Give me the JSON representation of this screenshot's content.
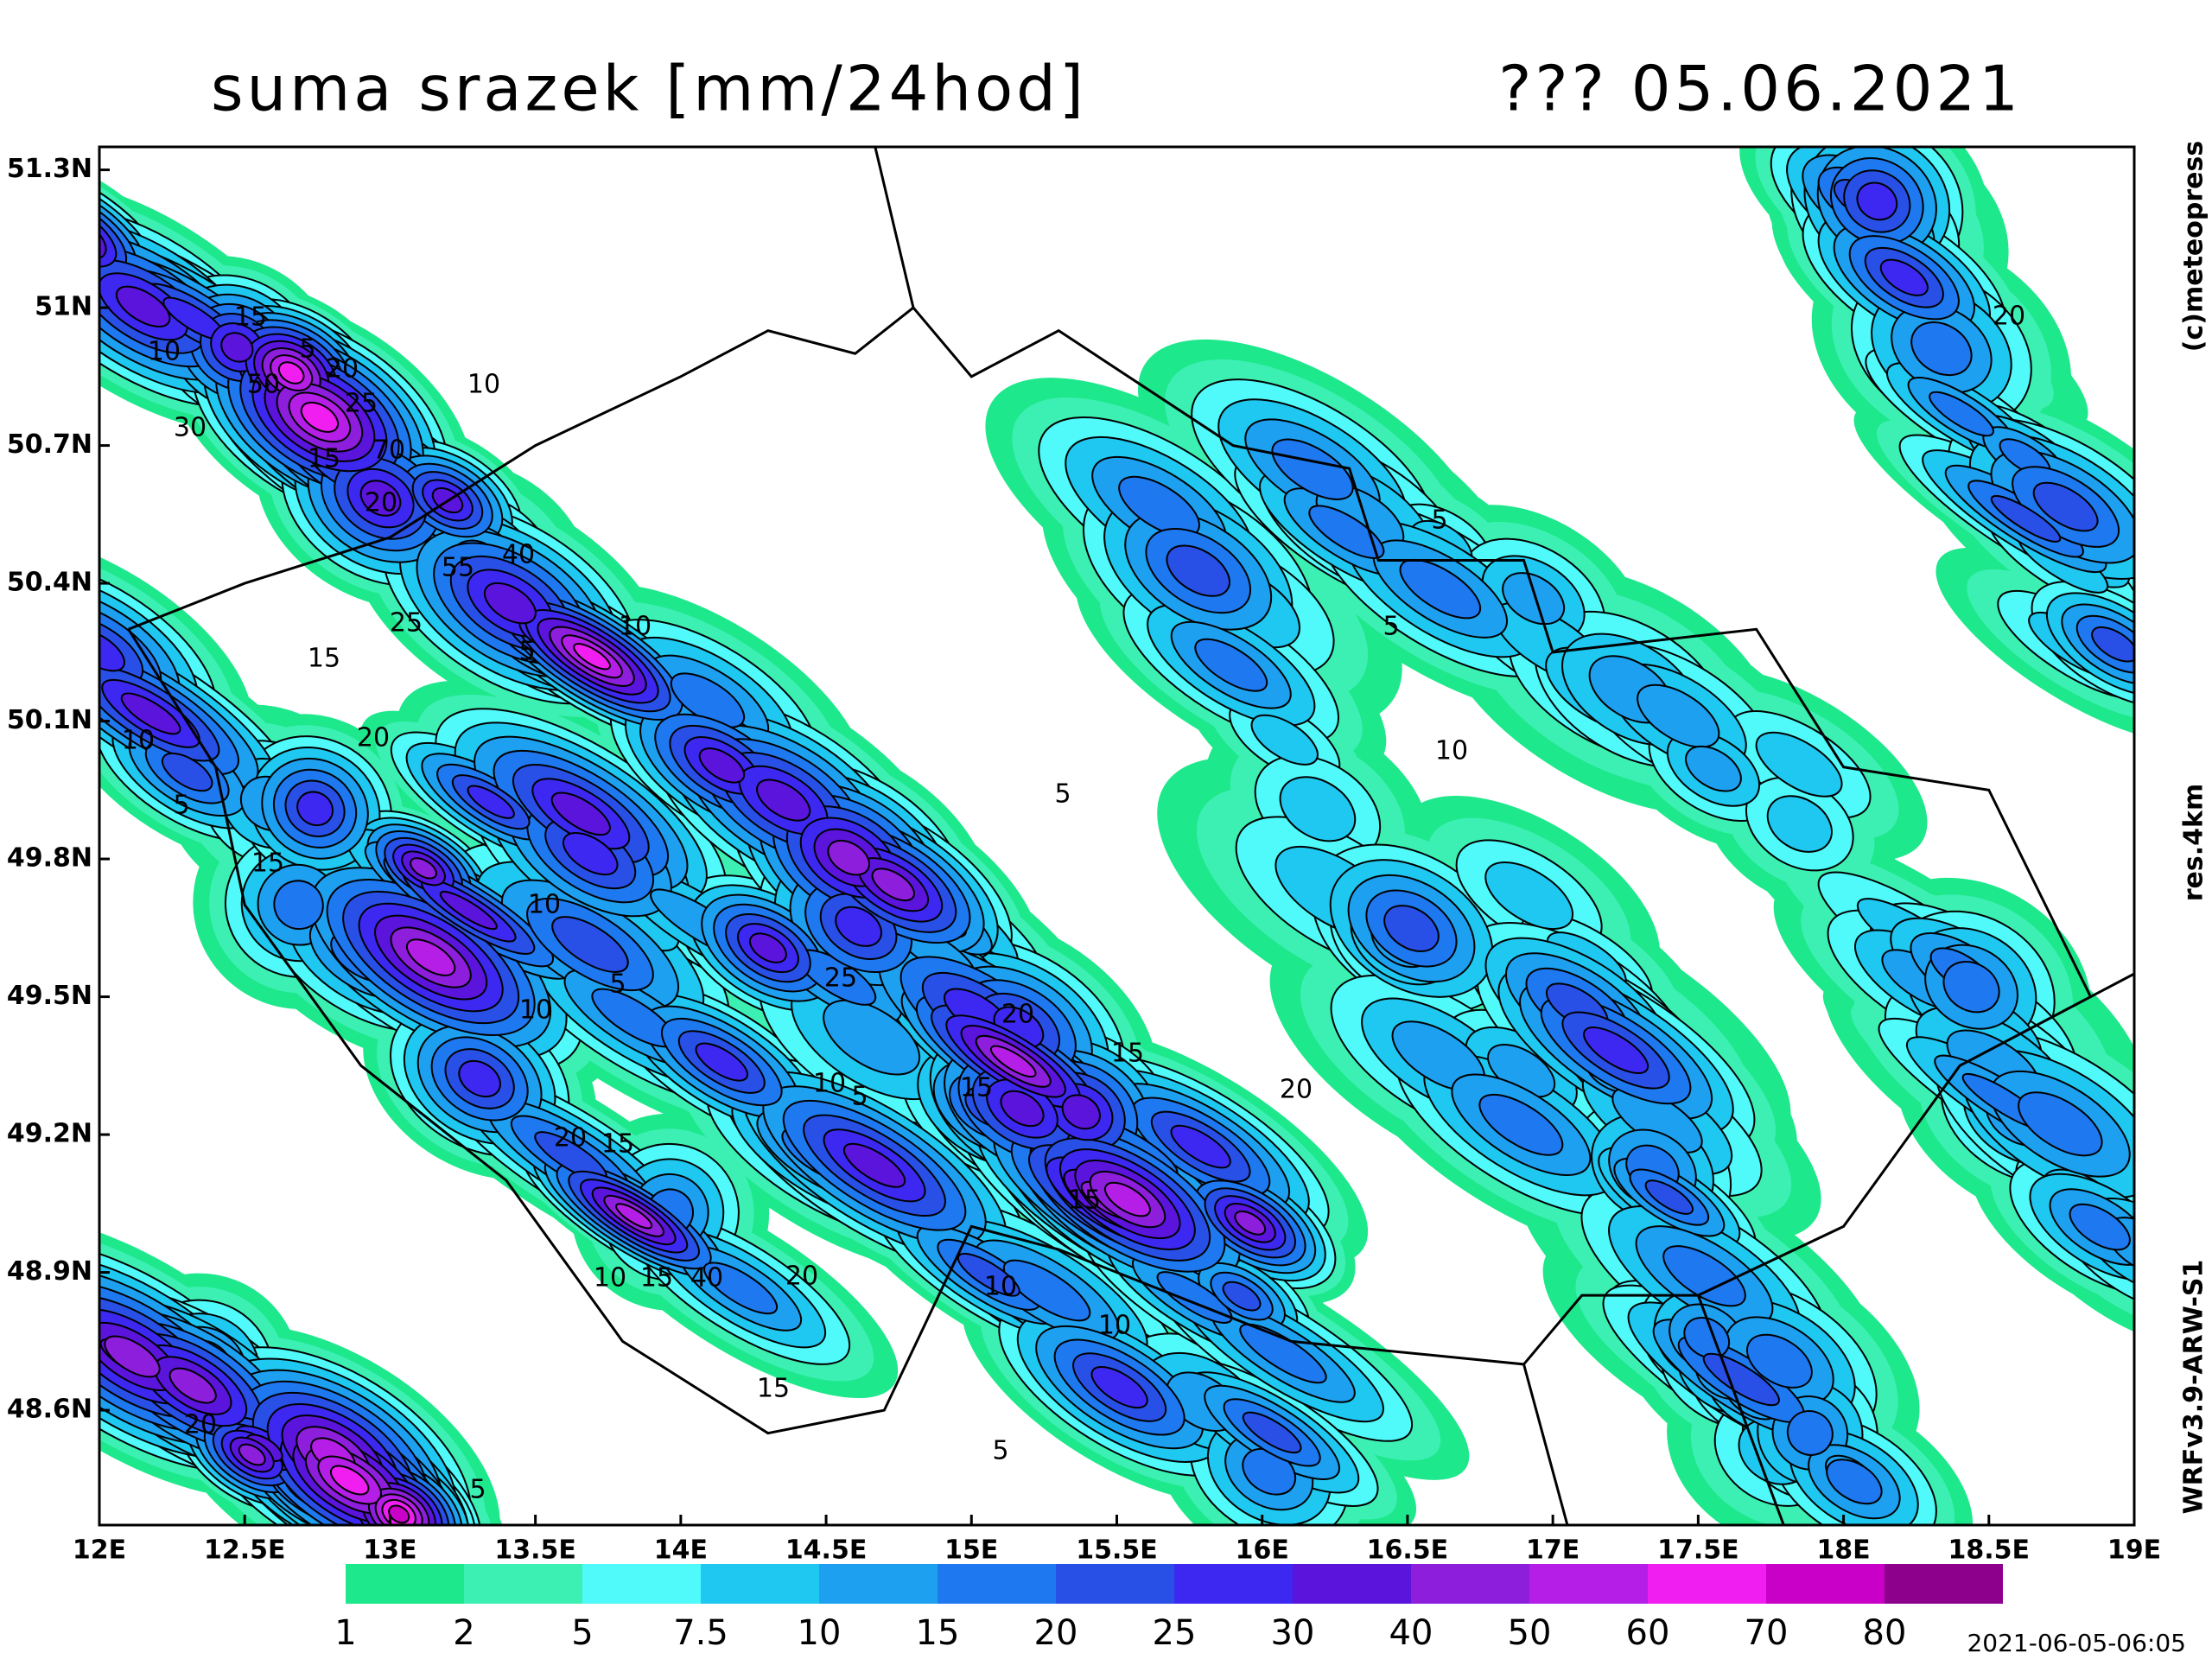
{
  "header": {
    "title": "suma srazek [mm/24hod]",
    "date": "??? 05.06.2021"
  },
  "map": {
    "xlim": [
      12,
      19
    ],
    "ylim": [
      48.35,
      51.35
    ],
    "lon_ticks": [
      {
        "value": 12,
        "label": "12E"
      },
      {
        "value": 12.5,
        "label": "12.5E"
      },
      {
        "value": 13,
        "label": "13E"
      },
      {
        "value": 13.5,
        "label": "13.5E"
      },
      {
        "value": 14,
        "label": "14E"
      },
      {
        "value": 14.5,
        "label": "14.5E"
      },
      {
        "value": 15,
        "label": "15E"
      },
      {
        "value": 15.5,
        "label": "15.5E"
      },
      {
        "value": 16,
        "label": "16E"
      },
      {
        "value": 16.5,
        "label": "16.5E"
      },
      {
        "value": 17,
        "label": "17E"
      },
      {
        "value": 17.5,
        "label": "17.5E"
      },
      {
        "value": 18,
        "label": "18E"
      },
      {
        "value": 18.5,
        "label": "18.5E"
      },
      {
        "value": 19,
        "label": "19E"
      }
    ],
    "lat_ticks": [
      {
        "value": 51.3,
        "label": "51.3N"
      },
      {
        "value": 51,
        "label": "51N"
      },
      {
        "value": 50.7,
        "label": "50.7N"
      },
      {
        "value": 50.4,
        "label": "50.4N"
      },
      {
        "value": 50.1,
        "label": "50.1N"
      },
      {
        "value": 49.8,
        "label": "49.8N"
      },
      {
        "value": 49.5,
        "label": "49.5N"
      },
      {
        "value": 49.2,
        "label": "49.2N"
      },
      {
        "value": 48.9,
        "label": "48.9N"
      },
      {
        "value": 48.6,
        "label": "48.6N"
      }
    ],
    "contour_labels": [
      "15",
      "10",
      "5",
      "20",
      "10",
      "30",
      "50",
      "25",
      "70",
      "15",
      "20",
      "40",
      "55",
      "10",
      "5",
      "25",
      "15",
      "20",
      "10",
      "5",
      "10",
      "15",
      "5",
      "25",
      "10",
      "5",
      "20",
      "15",
      "10",
      "20",
      "15",
      "10",
      "15",
      "40",
      "10",
      "15",
      "20",
      "5",
      "5",
      "10",
      "20",
      "20",
      "15",
      "5",
      "10",
      "5",
      "20",
      "5",
      "15"
    ]
  },
  "colorbar": {
    "levels": [
      1,
      2,
      5,
      7.5,
      10,
      15,
      20,
      25,
      30,
      40,
      50,
      60,
      70,
      80
    ],
    "colors": [
      "#1ee88c",
      "#3cf0b4",
      "#50fafa",
      "#1ec8f0",
      "#1ea0f0",
      "#1e78f0",
      "#2850e6",
      "#3c28f0",
      "#5a14dc",
      "#8c1edc",
      "#b41ee6",
      "#f01ef0",
      "#c800c8",
      "#8c008c"
    ]
  },
  "side_labels": [
    "(c)meteopress",
    "res.4km",
    "WRFv3.9-ARW-S1"
  ],
  "timestamp": "2021-06-05-06:05"
}
